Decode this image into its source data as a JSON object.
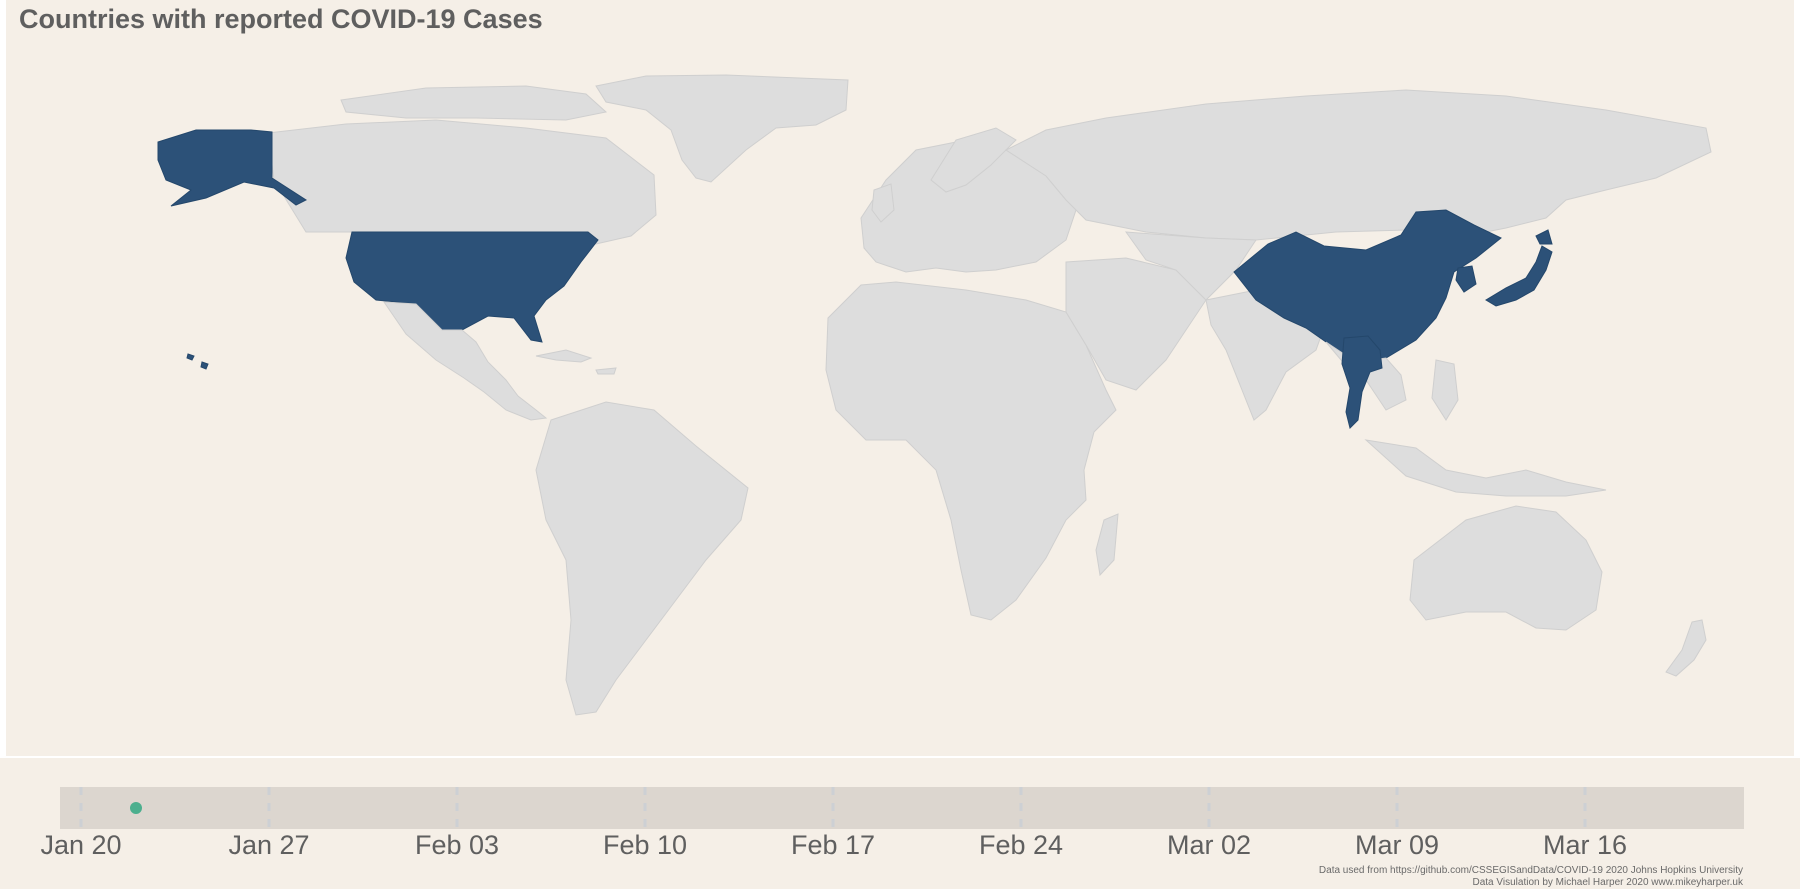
{
  "title": "Countries with reported COVID-19 Cases",
  "colors": {
    "background": "#f5efe7",
    "land": "#dddddd",
    "reported": "#2c5178",
    "timeline_track": "#dcd6cf",
    "slider_dot": "#4caf8e",
    "text": "#5f5f5f"
  },
  "chart_data": {
    "type": "choropleth-map",
    "title": "Countries with reported COVID-19 Cases",
    "reported_countries": [
      "United States",
      "China",
      "Japan",
      "Thailand",
      "South Korea"
    ],
    "timeline": {
      "ticks": [
        "Jan 20",
        "Jan 27",
        "Feb 03",
        "Feb 10",
        "Feb 17",
        "Feb 24",
        "Mar 02",
        "Mar 09",
        "Mar 16"
      ],
      "current_date": "Jan 22",
      "range": [
        "Jan 20",
        "Mar 23"
      ]
    }
  },
  "credits": {
    "line1": "Data used from  https://github.com/CSSEGISandData/COVID-19 2020 Johns Hopkins University",
    "line2": "Data Visulation by Michael Harper 2020 www.mikeyharper.uk"
  }
}
